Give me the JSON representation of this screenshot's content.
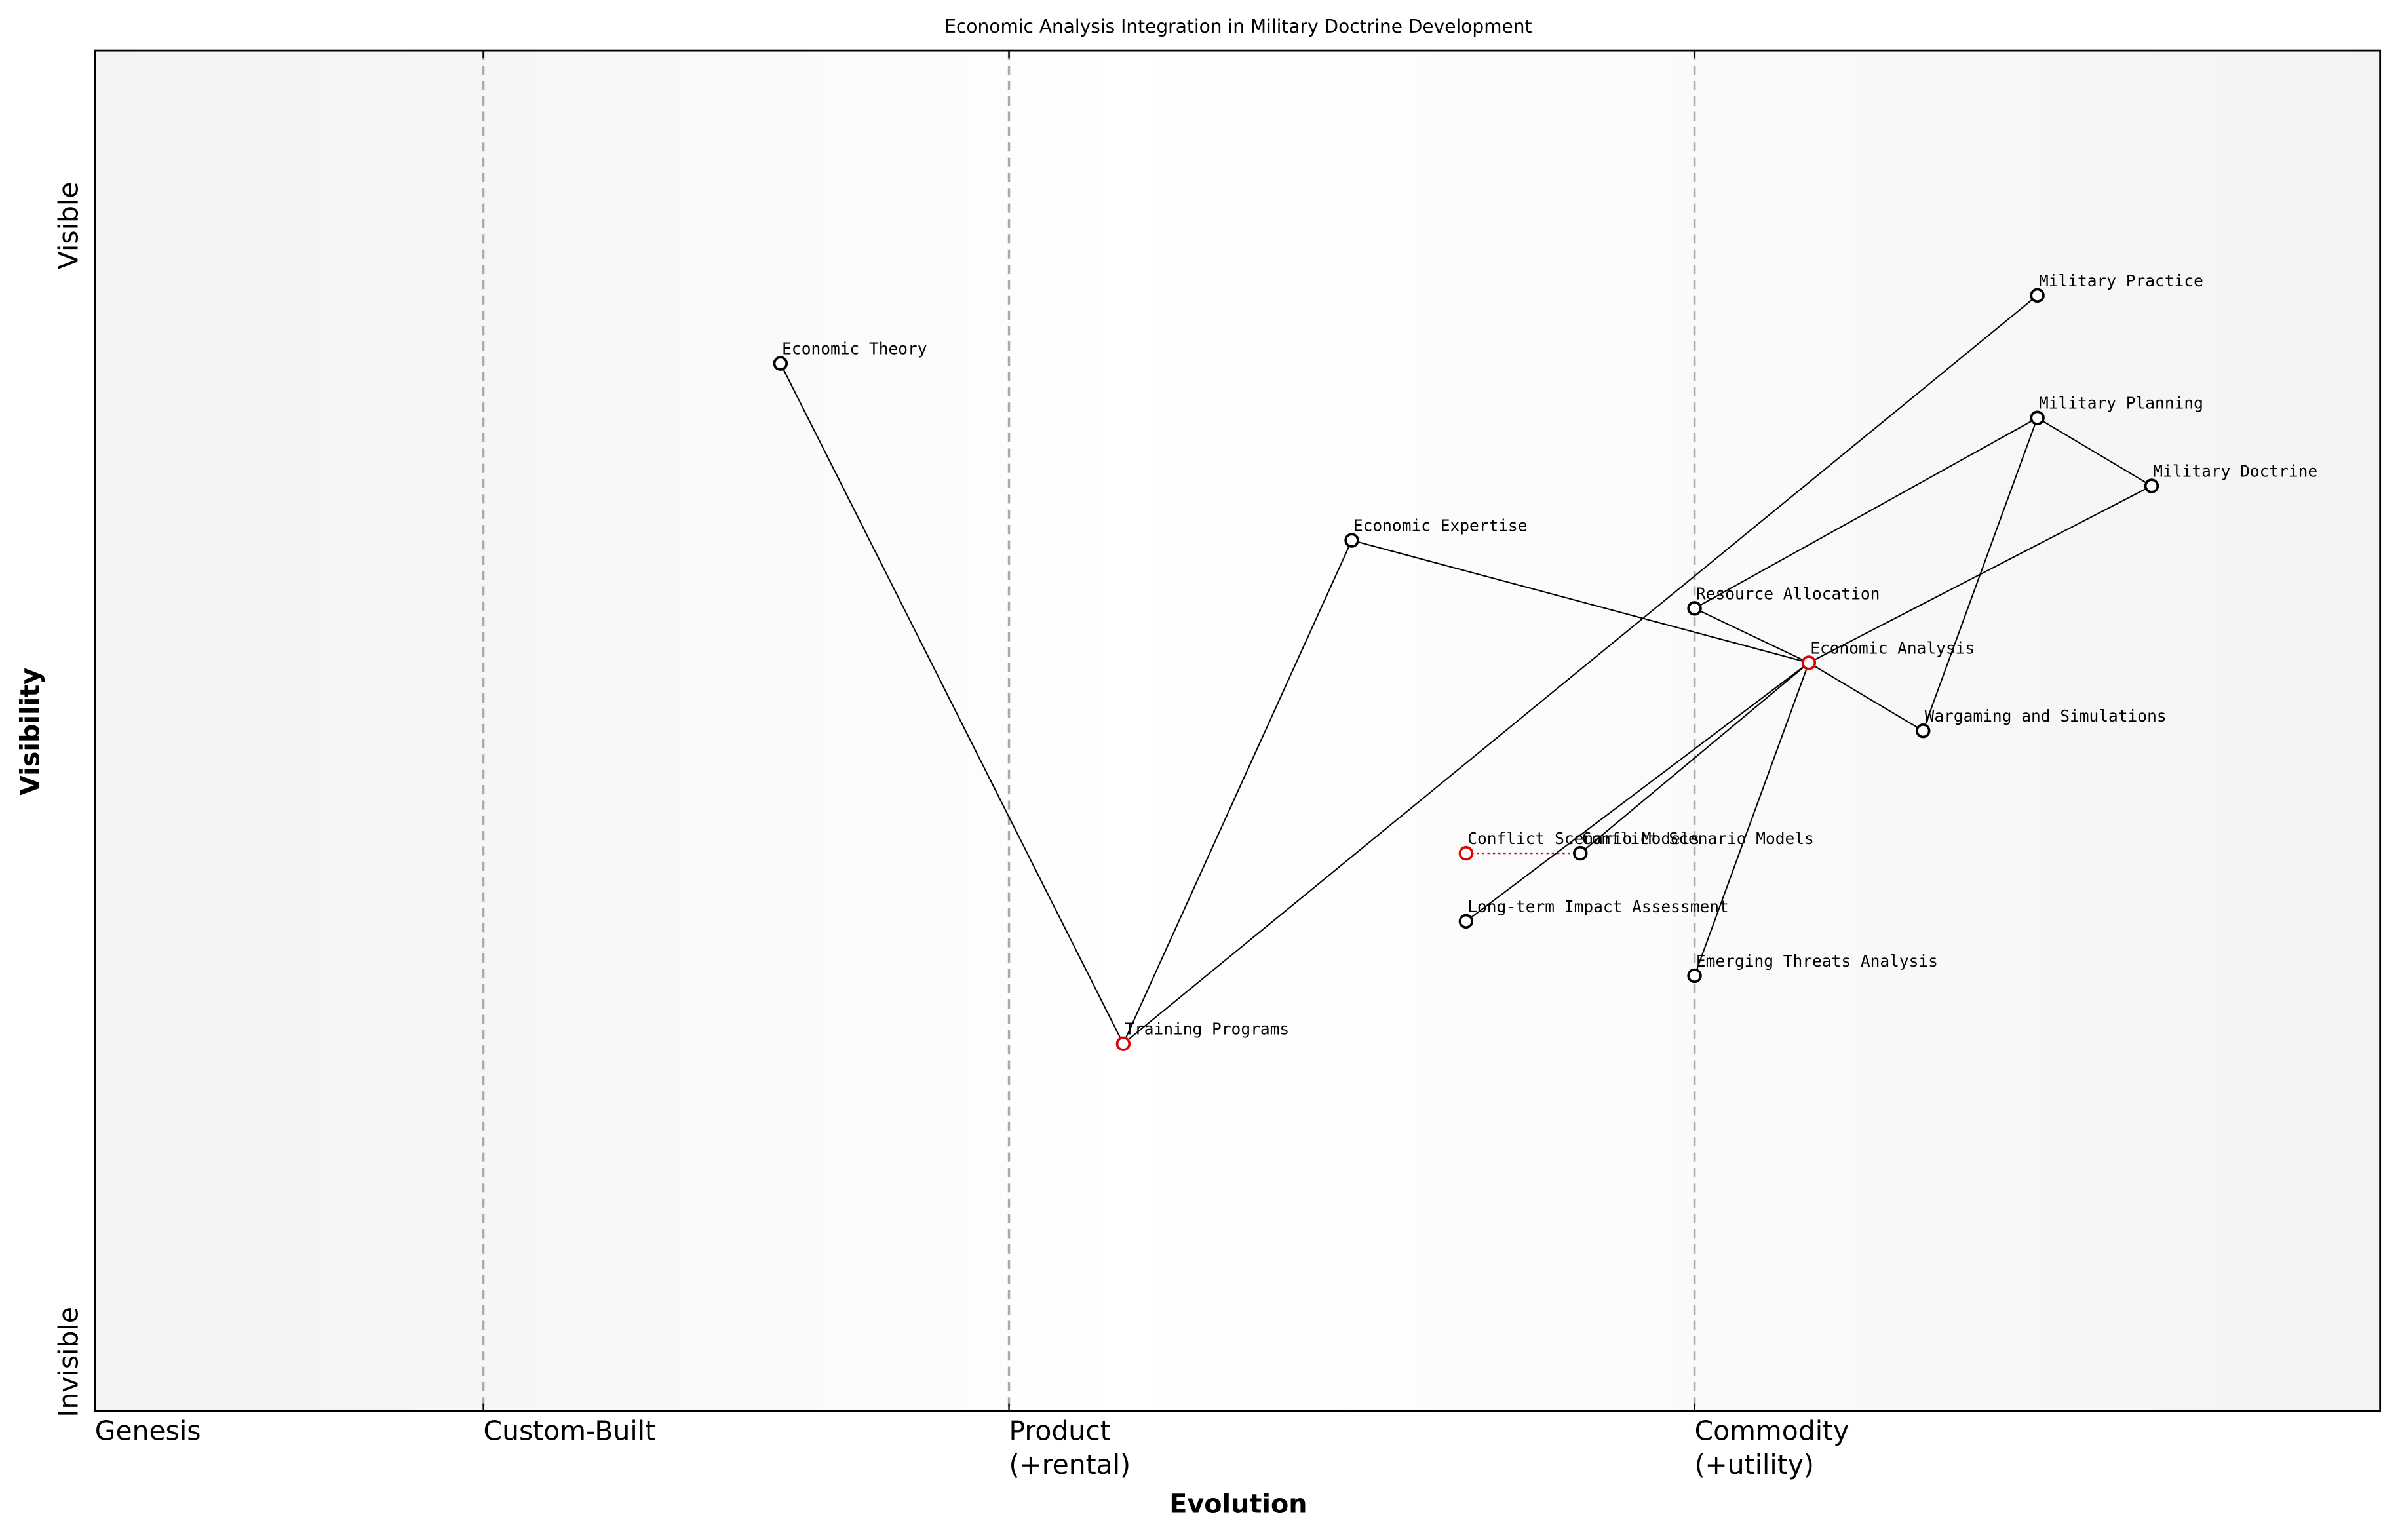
{
  "chart_data": {
    "type": "wardley",
    "title": "Economic Analysis Integration in Military Doctrine Development",
    "x_label": "Evolution",
    "y_label": "Visibility",
    "y_top_label": "Visible",
    "y_bottom_label": "Invisible",
    "xlim": [
      0,
      1
    ],
    "ylim": [
      0,
      1
    ],
    "xticks": [
      {
        "value": 0,
        "label": "Genesis"
      },
      {
        "value": 0.17,
        "label": "Custom-Built"
      },
      {
        "value": 0.4,
        "label": "Product\n(+rental)"
      },
      {
        "value": 0.7,
        "label": "Commodity\n(+utility)"
      }
    ],
    "nodes": [
      {
        "name": "Economic Theory",
        "evolution": 0.3,
        "visibility": 0.77,
        "color": "#000000"
      },
      {
        "name": "Military Practice",
        "evolution": 0.85,
        "visibility": 0.82,
        "color": "#000000"
      },
      {
        "name": "Military Planning",
        "evolution": 0.85,
        "visibility": 0.73,
        "color": "#000000"
      },
      {
        "name": "Military Doctrine",
        "evolution": 0.9,
        "visibility": 0.68,
        "color": "#000000"
      },
      {
        "name": "Economic Expertise",
        "evolution": 0.55,
        "visibility": 0.64,
        "color": "#000000"
      },
      {
        "name": "Resource Allocation",
        "evolution": 0.7,
        "visibility": 0.59,
        "color": "#000000"
      },
      {
        "name": "Economic Analysis",
        "evolution": 0.75,
        "visibility": 0.55,
        "color": "#e00000"
      },
      {
        "name": "Wargaming and Simulations",
        "evolution": 0.8,
        "visibility": 0.5,
        "color": "#000000"
      },
      {
        "name": "Conflict Scenario Models",
        "evolution": 0.6,
        "visibility": 0.41,
        "color": "#e00000"
      },
      {
        "name": "Conflict Scenario Models",
        "evolution": 0.65,
        "visibility": 0.41,
        "color": "#000000"
      },
      {
        "name": "Long-term Impact Assessment",
        "evolution": 0.6,
        "visibility": 0.36,
        "color": "#000000"
      },
      {
        "name": "Emerging Threats Analysis",
        "evolution": 0.7,
        "visibility": 0.32,
        "color": "#000000"
      },
      {
        "name": "Training Programs",
        "evolution": 0.45,
        "visibility": 0.27,
        "color": "#e00000"
      }
    ],
    "links": [
      [
        "Economic Theory",
        "Training Programs"
      ],
      [
        "Training Programs",
        "Economic Expertise"
      ],
      [
        "Training Programs",
        "Military Practice"
      ],
      [
        "Economic Expertise",
        "Economic Analysis"
      ],
      [
        "Resource Allocation",
        "Military Planning"
      ],
      [
        "Resource Allocation",
        "Economic Analysis"
      ],
      [
        "Military Planning",
        "Military Doctrine"
      ],
      [
        "Military Planning",
        "Wargaming and Simulations"
      ],
      [
        "Economic Analysis",
        "Military Doctrine"
      ],
      [
        "Economic Analysis",
        "Wargaming and Simulations"
      ],
      [
        "Economic Analysis",
        "Conflict Scenario Models"
      ],
      [
        "Economic Analysis",
        "Long-term Impact Assessment"
      ],
      [
        "Economic Analysis",
        "Emerging Threats Analysis"
      ]
    ]
  }
}
